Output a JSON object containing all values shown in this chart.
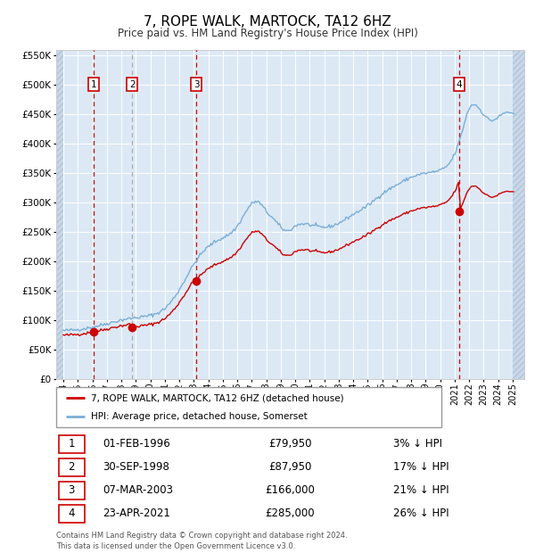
{
  "title": "7, ROPE WALK, MARTOCK, TA12 6HZ",
  "subtitle": "Price paid vs. HM Land Registry's House Price Index (HPI)",
  "title_fontsize": 11,
  "subtitle_fontsize": 9,
  "plot_bg_color": "#dce9f5",
  "grid_color": "#ffffff",
  "red_line_color": "#cc0000",
  "blue_line_color": "#7aaed6",
  "vline_color_red": "#cc0000",
  "vline_color_gray": "#aaaaaa",
  "ylim": [
    0,
    560000
  ],
  "yticks": [
    0,
    50000,
    100000,
    150000,
    200000,
    250000,
    300000,
    350000,
    400000,
    450000,
    500000,
    550000
  ],
  "xlim_start": 1993.5,
  "xlim_end": 2025.8,
  "xticks": [
    1994,
    1995,
    1996,
    1997,
    1998,
    1999,
    2000,
    2001,
    2002,
    2003,
    2004,
    2005,
    2006,
    2007,
    2008,
    2009,
    2010,
    2011,
    2012,
    2013,
    2014,
    2015,
    2016,
    2017,
    2018,
    2019,
    2020,
    2021,
    2022,
    2023,
    2024,
    2025
  ],
  "sale_dates_decimal": [
    1996.08,
    1998.75,
    2003.18,
    2021.31
  ],
  "sale_prices": [
    79950,
    87950,
    166000,
    285000
  ],
  "sale_labels": [
    "1",
    "2",
    "3",
    "4"
  ],
  "vline_styles": [
    "red_dashed",
    "gray_dashed",
    "red_dashed",
    "red_dashed"
  ],
  "legend_entries": [
    "7, ROPE WALK, MARTOCK, TA12 6HZ (detached house)",
    "HPI: Average price, detached house, Somerset"
  ],
  "legend_colors": [
    "#cc0000",
    "#7aaed6"
  ],
  "table_rows": [
    [
      "1",
      "01-FEB-1996",
      "£79,950",
      "3% ↓ HPI"
    ],
    [
      "2",
      "30-SEP-1998",
      "£87,950",
      "17% ↓ HPI"
    ],
    [
      "3",
      "07-MAR-2003",
      "£166,000",
      "21% ↓ HPI"
    ],
    [
      "4",
      "23-APR-2021",
      "£285,000",
      "26% ↓ HPI"
    ]
  ],
  "footnote": "Contains HM Land Registry data © Crown copyright and database right 2024.\nThis data is licensed under the Open Government Licence v3.0."
}
